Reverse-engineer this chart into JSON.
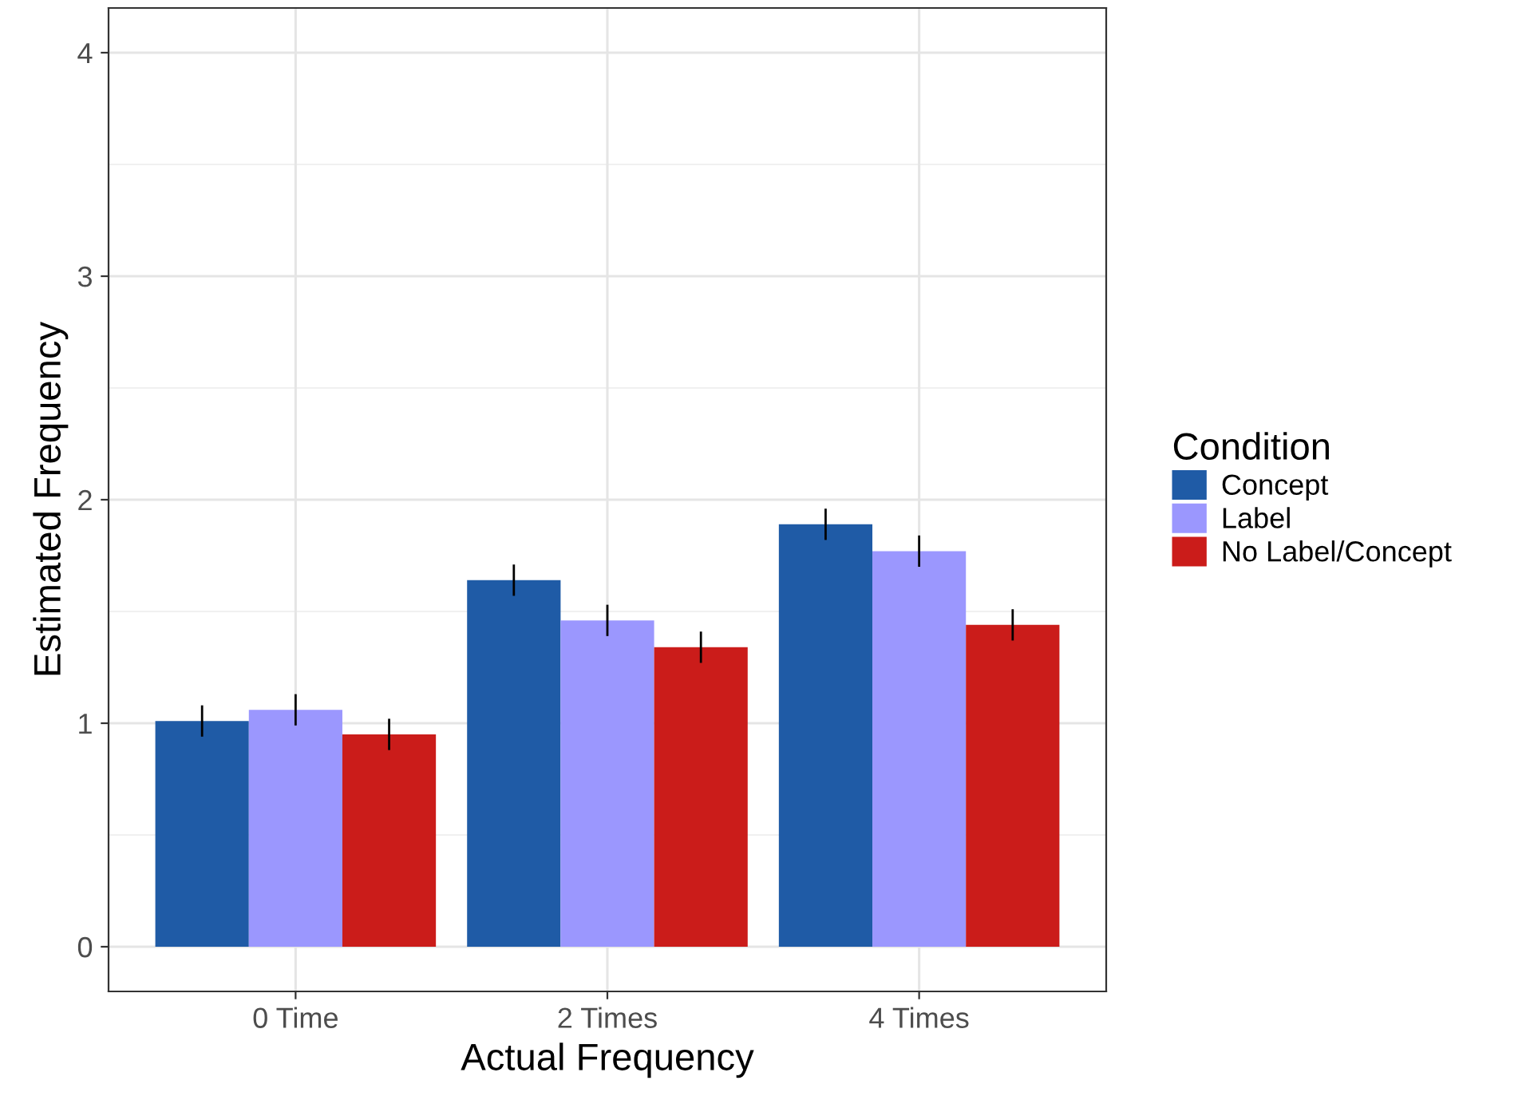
{
  "chart_data": {
    "type": "bar",
    "xlabel": "Actual Frequency",
    "ylabel": "Estimated Frequency",
    "legend_title": "Condition",
    "categories": [
      "0 Time",
      "2 Times",
      "4 Times"
    ],
    "series": [
      {
        "name": "Concept",
        "color": "#1f5ba6",
        "values": [
          1.01,
          1.64,
          1.89
        ],
        "errors": [
          0.07,
          0.07,
          0.07
        ]
      },
      {
        "name": "Label",
        "color": "#9b97fe",
        "values": [
          1.06,
          1.46,
          1.77
        ],
        "errors": [
          0.07,
          0.07,
          0.07
        ]
      },
      {
        "name": "No Label/Concept",
        "color": "#cb1c1a",
        "values": [
          0.95,
          1.34,
          1.44
        ],
        "errors": [
          0.07,
          0.07,
          0.07
        ]
      }
    ],
    "ylim": [
      -0.2,
      4.2
    ],
    "yticks": [
      0,
      1,
      2,
      3,
      4
    ],
    "grid": true,
    "legend": "right"
  }
}
